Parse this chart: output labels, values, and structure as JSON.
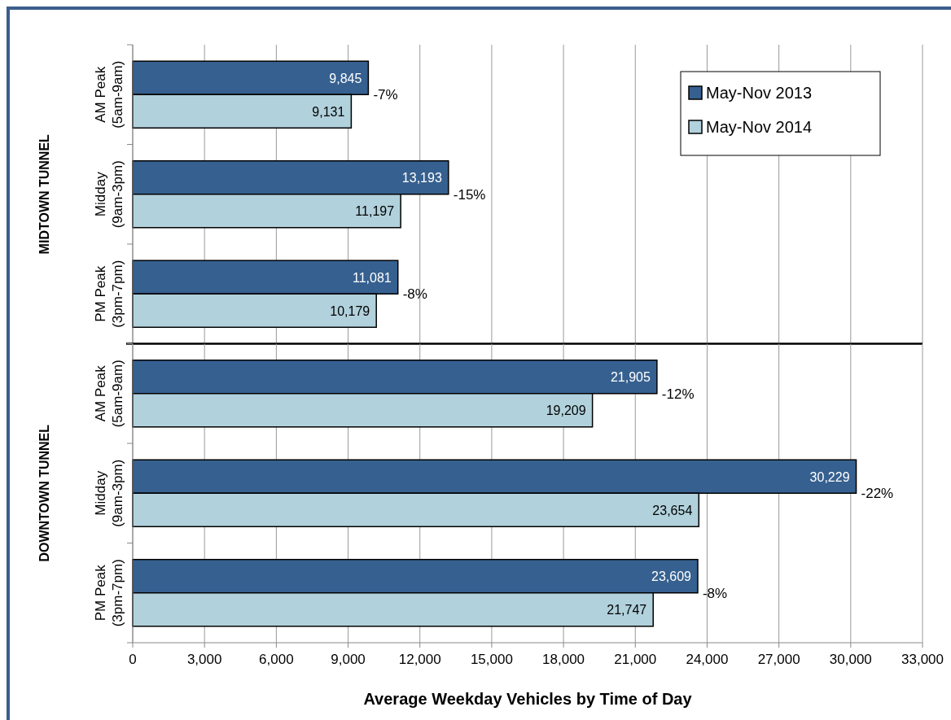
{
  "chart_data": [
    {
      "type": "bar",
      "orientation": "horizontal",
      "ylabel": "MIDTOWN TUNNEL",
      "categories": [
        "AM Peak\n(5am-9am)",
        "Midday\n(9am-3pm)",
        "PM Peak\n(3pm-7pm)"
      ],
      "series": [
        {
          "name": "May-Nov 2013",
          "color": "#36608f",
          "values": [
            9845,
            13193,
            11081
          ],
          "value_labels": [
            "9,845",
            "13,193",
            "11,081"
          ]
        },
        {
          "name": "May-Nov 2014",
          "color": "#b1d1dc",
          "values": [
            9131,
            11197,
            10179
          ],
          "value_labels": [
            "9,131",
            "11,197",
            "10,179"
          ]
        }
      ],
      "xlim": [
        0,
        33000
      ],
      "xticks": [
        {
          "value": 0,
          "label": null
        },
        {
          "value": 3000,
          "label": null
        },
        {
          "value": 6000,
          "label": null
        },
        {
          "value": 9000,
          "label": null
        },
        {
          "value": 12000,
          "label": null
        },
        {
          "value": 15000,
          "label": null
        },
        {
          "value": 18000,
          "label": null
        },
        {
          "value": 21000,
          "label": null
        },
        {
          "value": 24000,
          "label": null
        },
        {
          "value": 27000,
          "label": null
        },
        {
          "value": 30000,
          "label": null
        },
        {
          "value": 33000,
          "label": null
        }
      ],
      "tick_labels": "y",
      "grid": "x",
      "legend": "top right",
      "annotations": [
        "-7%",
        "-15%",
        "-8%"
      ]
    },
    {
      "type": "bar",
      "orientation": "horizontal",
      "ylabel": "DOWNTOWN TUNNEL",
      "xlabel": "Average Weekday Vehicles by Time of Day",
      "categories": [
        "AM Peak\n(5am-9am)",
        "Midday\n(9am-3pm)",
        "PM Peak\n(3pm-7pm)"
      ],
      "series": [
        {
          "color": "#36608f",
          "values": [
            21905,
            30229,
            23609
          ],
          "value_labels": [
            "21,905",
            "30,229",
            "23,609"
          ]
        },
        {
          "color": "#b1d1dc",
          "values": [
            19209,
            23654,
            21747
          ],
          "value_labels": [
            "19,209",
            "23,654",
            "21,747"
          ]
        }
      ],
      "xlim": [
        0,
        33000
      ],
      "xticks": [
        {
          "value": 0,
          "label": "0"
        },
        {
          "value": 3000,
          "label": "3,000"
        },
        {
          "value": 6000,
          "label": "6,000"
        },
        {
          "value": 9000,
          "label": "9,000"
        },
        {
          "value": 12000,
          "label": "12,000"
        },
        {
          "value": 15000,
          "label": "15,000"
        },
        {
          "value": 18000,
          "label": "18,000"
        },
        {
          "value": 21000,
          "label": "21,000"
        },
        {
          "value": 24000,
          "label": "24,000"
        },
        {
          "value": 27000,
          "label": "27,000"
        },
        {
          "value": 30000,
          "label": "30,000"
        },
        {
          "value": 33000,
          "label": "33,000"
        }
      ],
      "grid": "x",
      "annotations": [
        "-12%",
        "-22%",
        "-8%"
      ]
    }
  ]
}
